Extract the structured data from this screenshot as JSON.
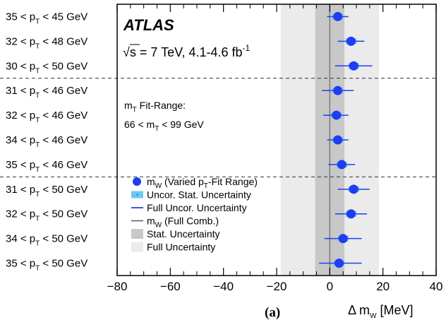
{
  "chart_data": {
    "type": "scatter",
    "title": "",
    "xlabel": "Δ m_W [MeV]",
    "ylabel": "",
    "xlim": [
      -80,
      40
    ],
    "xticks": [
      "−80",
      "−60",
      "−40",
      "−20",
      "0",
      "20",
      "40"
    ],
    "panel_label": "(a)",
    "experiment": "ATLAS",
    "energy_label": "√s = 7 TeV, 4.1-4.6 fb",
    "energy_label_sup": "-1",
    "fit_range_label": "m_T Fit-Range:",
    "fit_range_value": "66 < m_T < 99 GeV",
    "combination": {
      "value": 0,
      "stat_uncertainty": [
        -5.5,
        5.5
      ],
      "full_uncertainty": [
        -18.5,
        18.5
      ]
    },
    "categories": [
      {
        "lo": "35",
        "hi": "45",
        "unit": "GeV",
        "value": 3,
        "stat": [
          1,
          5
        ],
        "full": [
          -1,
          7
        ]
      },
      {
        "lo": "32",
        "hi": "48",
        "unit": "GeV",
        "value": 8,
        "stat": [
          6,
          10
        ],
        "full": [
          3,
          13
        ]
      },
      {
        "lo": "30",
        "hi": "50",
        "unit": "GeV",
        "value": 9,
        "stat": [
          7,
          11
        ],
        "full": [
          2,
          16
        ]
      },
      {
        "lo": "31",
        "hi": "46",
        "unit": "GeV",
        "value": 3,
        "stat": [
          1,
          5
        ],
        "full": [
          -3,
          9
        ]
      },
      {
        "lo": "32",
        "hi": "46",
        "unit": "GeV",
        "value": 2.5,
        "stat": [
          0.5,
          4.5
        ],
        "full": [
          -2.5,
          7
        ]
      },
      {
        "lo": "34",
        "hi": "46",
        "unit": "GeV",
        "value": 3,
        "stat": [
          1,
          5
        ],
        "full": [
          -1,
          7
        ]
      },
      {
        "lo": "35",
        "hi": "46",
        "unit": "GeV",
        "value": 4.5,
        "stat": [
          2.5,
          6.5
        ],
        "full": [
          -0.5,
          9.5
        ]
      },
      {
        "lo": "31",
        "hi": "50",
        "unit": "GeV",
        "value": 9,
        "stat": [
          7,
          11
        ],
        "full": [
          3,
          15
        ]
      },
      {
        "lo": "32",
        "hi": "50",
        "unit": "GeV",
        "value": 8,
        "stat": [
          6,
          10
        ],
        "full": [
          2,
          14
        ]
      },
      {
        "lo": "34",
        "hi": "50",
        "unit": "GeV",
        "value": 5,
        "stat": [
          3,
          7
        ],
        "full": [
          -2,
          12
        ]
      },
      {
        "lo": "35",
        "hi": "50",
        "unit": "GeV",
        "value": 3.5,
        "stat": [
          1.5,
          5.5
        ],
        "full": [
          -4,
          12
        ]
      }
    ],
    "separators_after": [
      2,
      6
    ],
    "legend": [
      {
        "key": "marker",
        "label_pre": "m",
        "label_sub": "W",
        "label_mid": " (Varied p",
        "label_sub2": "T",
        "label_post": "-Fit Range)"
      },
      {
        "key": "stat-band",
        "label": "Uncor. Stat. Uncertainty"
      },
      {
        "key": "full-line",
        "label": "Full Uncor. Uncertainty"
      },
      {
        "key": "comb-line",
        "label_pre": "m",
        "label_sub": "W",
        "label_post": " (Full Comb.)"
      },
      {
        "key": "stat-fill",
        "label": "Stat. Uncertainty"
      },
      {
        "key": "full-fill",
        "label": "Full Uncertainty"
      }
    ],
    "colors": {
      "marker": "#1f3df2",
      "full_line": "#1f3df2",
      "stat_band": "#6ec7f0",
      "stat_fill": "#c8c8c8",
      "full_fill": "#ebebeb",
      "comb_line": "#7a7a7a"
    }
  }
}
